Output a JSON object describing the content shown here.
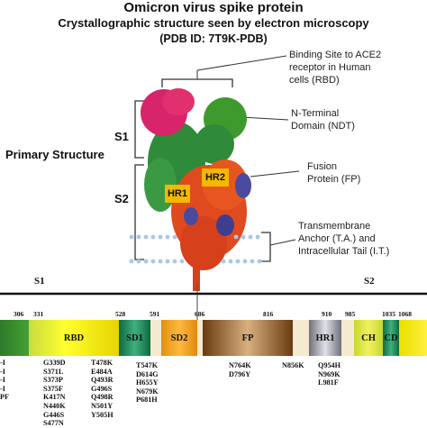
{
  "header": {
    "title": "Omicron virus spike protein",
    "subtitle": "Crystallographic structure seen by electron microscopy",
    "pdb": "(PDB ID: 7T9K-PDB)"
  },
  "labels": {
    "primary_structure": "Primary Structure",
    "s1": "S1",
    "s2": "S2",
    "hr1": "HR1",
    "hr2": "HR2",
    "rbd_callout_1": "Binding Site to ACE2",
    "rbd_callout_2": "receptor in Human",
    "rbd_callout_3": "cells (RBD)",
    "ntd_callout_1": "N-Terminal",
    "ntd_callout_2": "Domain (NDT)",
    "fp_callout_1": "Fusion",
    "fp_callout_2": "Protein (FP)",
    "ta_callout_1": "Transmembrane",
    "ta_callout_2": "Anchor (T.A.) and",
    "ta_callout_3": "Intracellular Tail (I.T.)",
    "bar_s1": "S1",
    "bar_s2": "S2"
  },
  "ticks": [
    "306",
    "331",
    "528",
    "591",
    "686",
    "816",
    "910",
    "985",
    "1035",
    "1068"
  ],
  "domains": {
    "rbd": "RBD",
    "sd1": "SD1",
    "sd2": "SD2",
    "fp": "FP",
    "hr1": "HR1",
    "ch": "CH",
    "cd": "CD"
  },
  "mutations": {
    "left_partial": [
      "-I",
      "-I",
      "-I",
      "-I",
      "PF"
    ],
    "rbd_a": [
      "G339D",
      "S371L",
      "S373P",
      "S375F",
      "K417N",
      "N440K",
      "G446S",
      "S477N"
    ],
    "rbd_b": [
      "T478K",
      "E484A",
      "Q493R",
      "G496S",
      "Q498R",
      "N501Y",
      "Y505H"
    ],
    "sd1": [
      "T547K",
      "D614G",
      "H655Y",
      "N679K",
      "P681H"
    ],
    "fp_a": [
      "N764K",
      "D796Y"
    ],
    "fp_b": [
      "N856K"
    ],
    "hr1": [
      "Q954H",
      "N969K",
      "L981F"
    ]
  },
  "colors": {
    "ntd": "#3a8a2e",
    "rbd": "#e0d400",
    "sd1": "#1f8a5a",
    "sd2": "#f0a020",
    "fp": "#8a5a2a",
    "hr1": "#9a9aa6",
    "ch": "#d8e040",
    "cd": "#1f8a5a",
    "hr_box": "#f5b800",
    "protein_pink": "#d8246a",
    "protein_green": "#2f8a3a",
    "protein_orange": "#e04a1f",
    "protein_blue": "#4a4aa0"
  }
}
